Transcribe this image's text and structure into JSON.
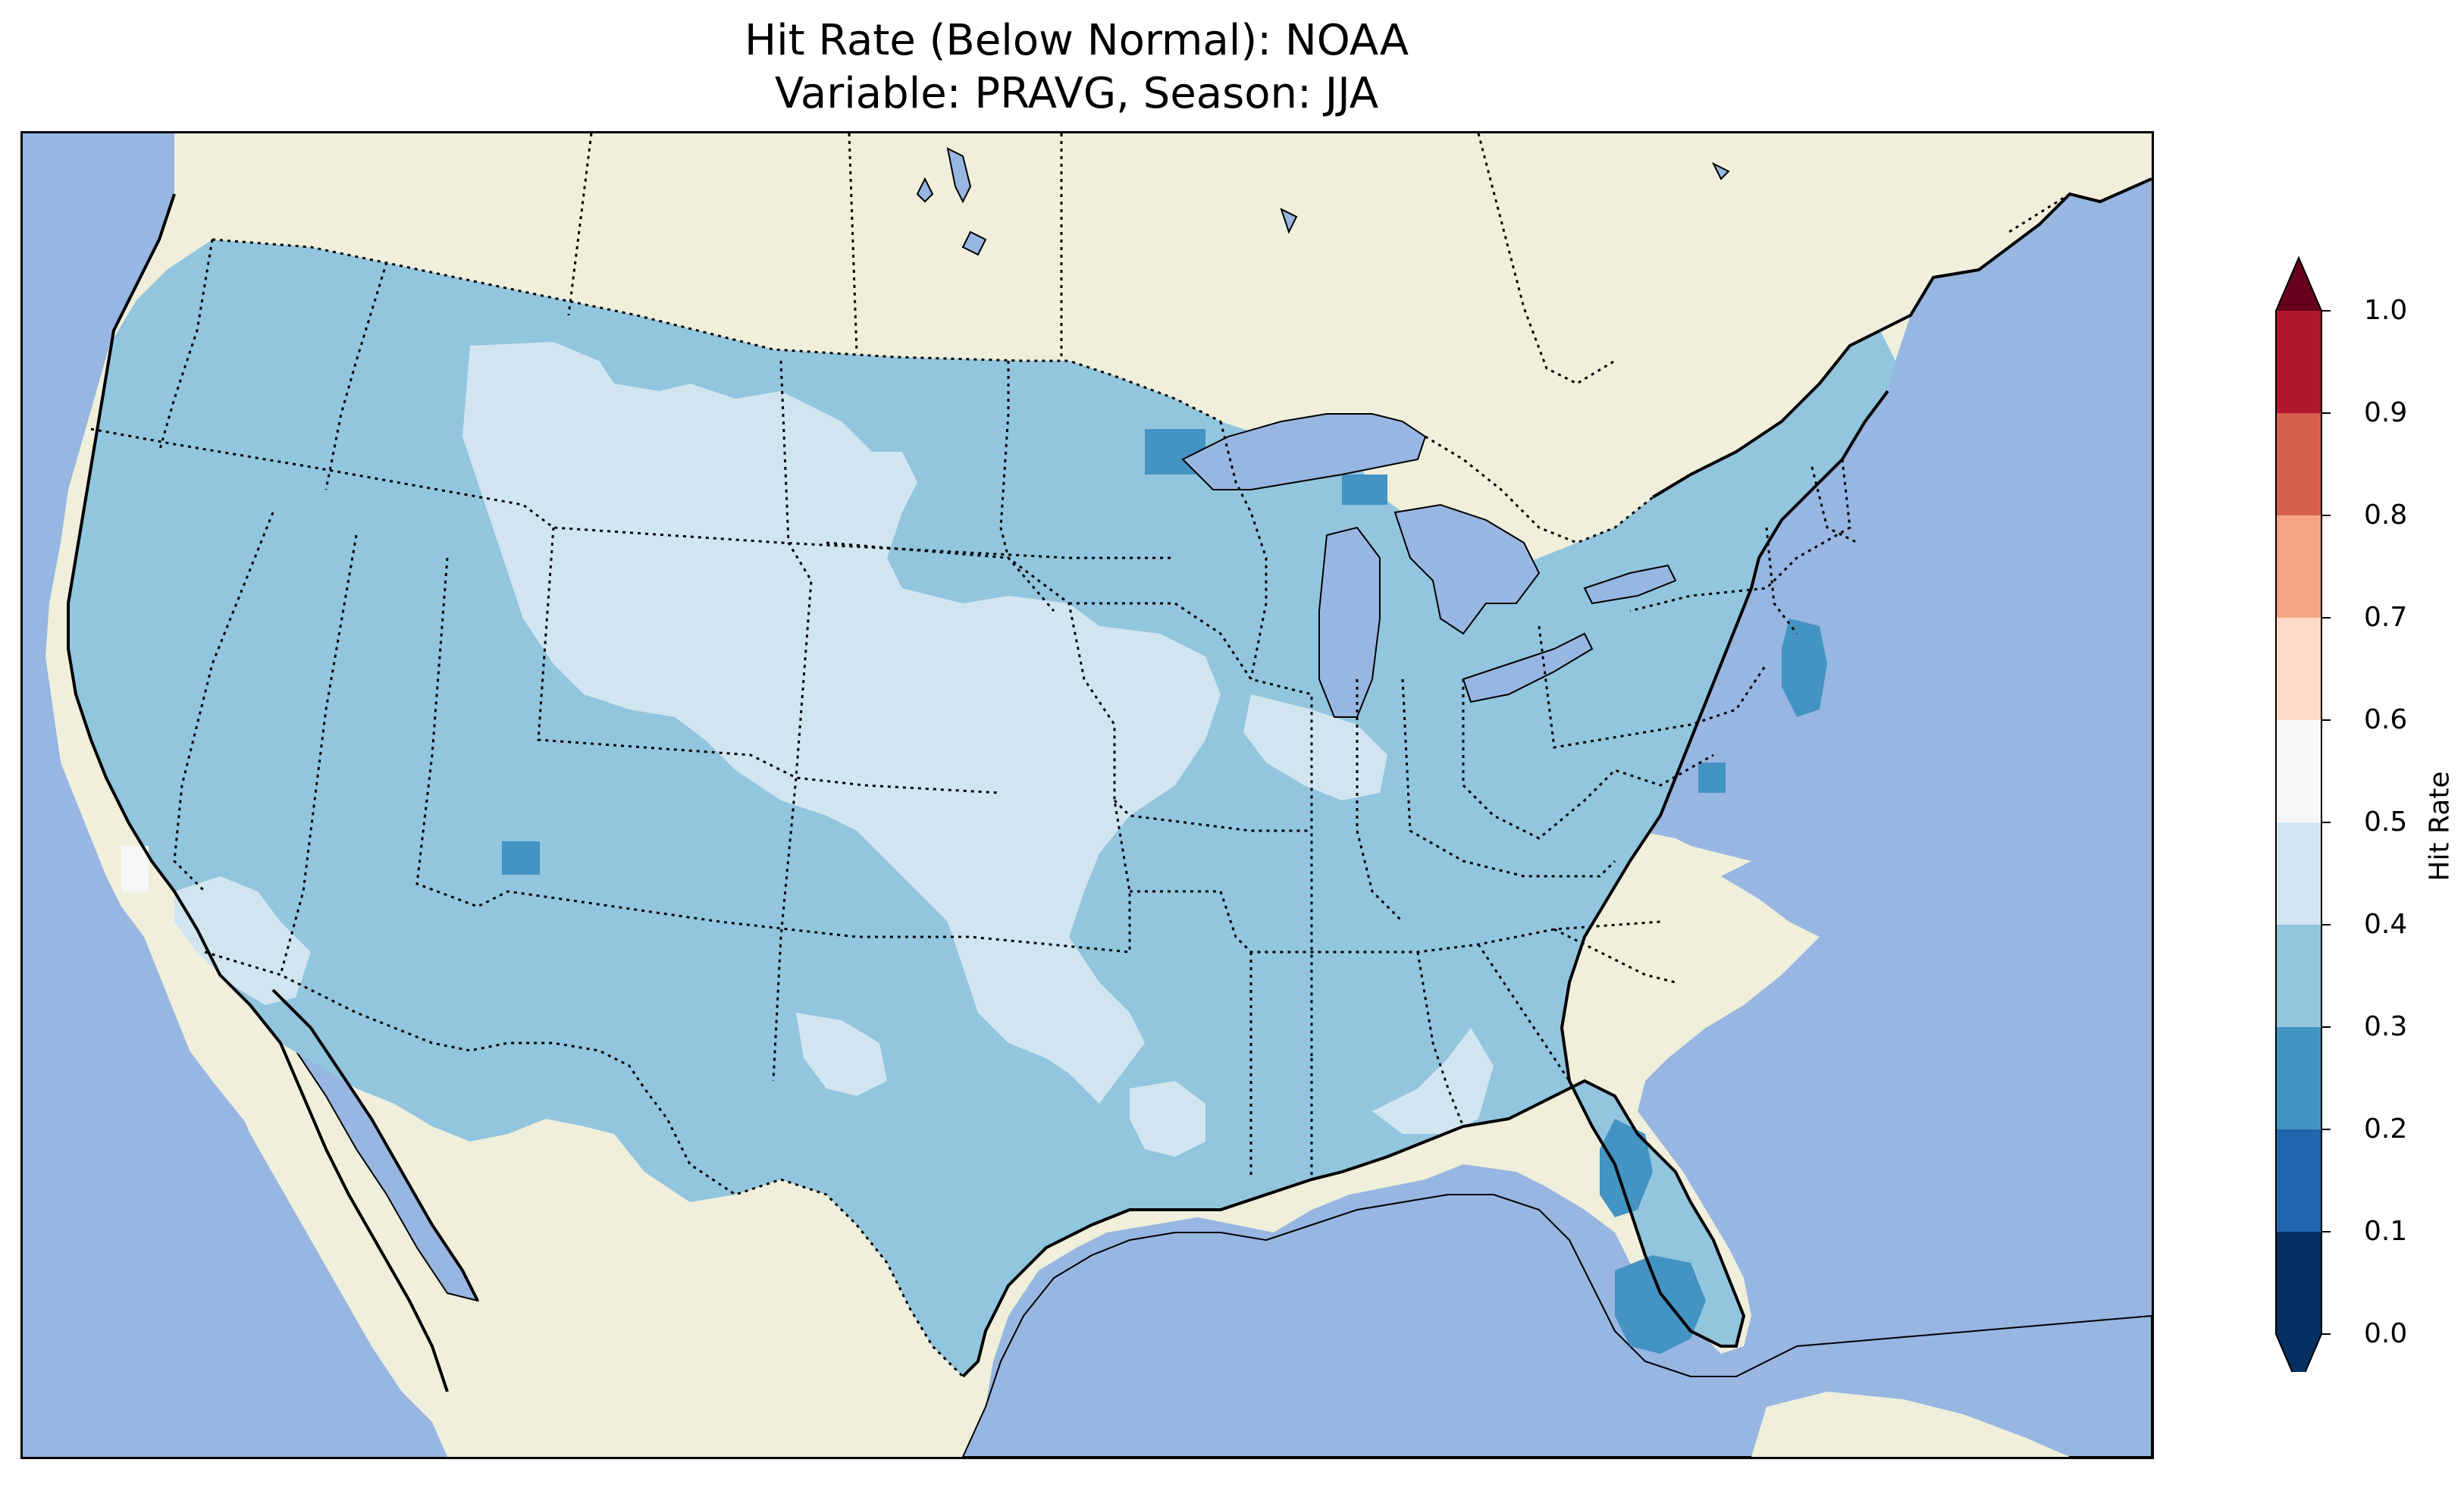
{
  "title": {
    "line1": "Hit Rate (Below Normal): NOAA",
    "line2": "Variable: PRAVG, Season: JJA"
  },
  "colors": {
    "ocean": "#97b6e1",
    "land": "#efefdb",
    "coastline": "#000000",
    "state_border": "#000000",
    "bins": [
      "#053061",
      "#2166ac",
      "#4393c3",
      "#92c5de",
      "#d1e5f0",
      "#f7f7f7",
      "#fddbc7",
      "#f4a582",
      "#d6604d",
      "#b2182b",
      "#67001f"
    ]
  },
  "map": {
    "type": "choropleth-raster",
    "region": "contiguous United States",
    "dominant_bin": "0.3–0.4",
    "regions": [
      {
        "name": "most of CONUS",
        "bin": "0.3–0.4"
      },
      {
        "name": "central plains / Wyoming / Nebraska / Kansas",
        "bin": "0.4–0.5"
      },
      {
        "name": "southern California",
        "bin": "0.4–0.5"
      },
      {
        "name": "Alabama / Georgia",
        "bin": "0.4–0.5"
      },
      {
        "name": "Florida peninsula",
        "bin": "0.2–0.3"
      },
      {
        "name": "New Jersey",
        "bin": "0.2–0.3"
      },
      {
        "name": "central California coast",
        "bin": "0.5–0.6"
      }
    ]
  },
  "colorbar": {
    "label": "Hit Rate",
    "ticks": [
      "0.0",
      "0.1",
      "0.2",
      "0.3",
      "0.4",
      "0.5",
      "0.6",
      "0.7",
      "0.8",
      "0.9",
      "1.0"
    ],
    "extend": "both"
  }
}
